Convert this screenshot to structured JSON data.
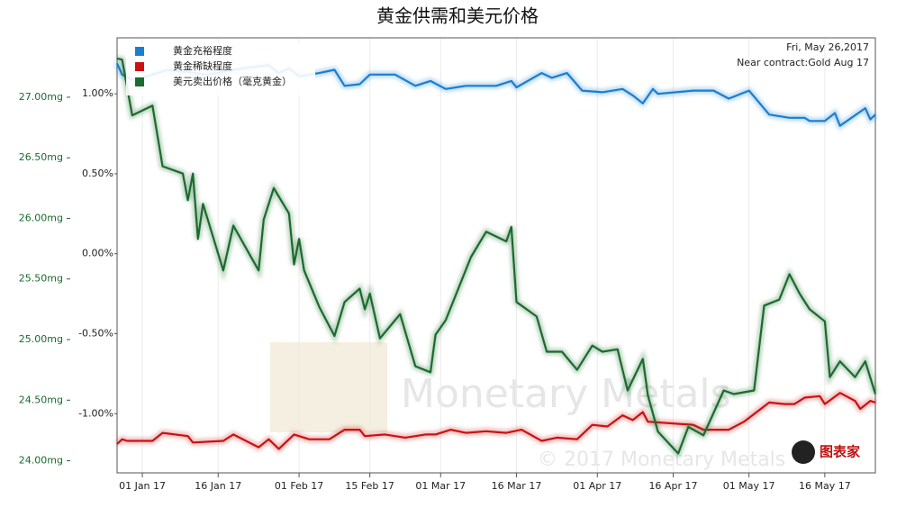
{
  "chart_data": {
    "type": "line",
    "title": "黄金供需和美元价格",
    "annotations": [
      "Fri, May 26,2017",
      "Near contract:Gold Aug 17",
      "Monetary Metals",
      "© 2017 Monetary Metals",
      "图表家"
    ],
    "xlim": [
      "2016-12-27",
      "2017-05-26"
    ],
    "xticks": [
      {
        "value": "2017-01-01",
        "label": "01 Jan 17"
      },
      {
        "value": "2017-01-16",
        "label": "16 Jan 17"
      },
      {
        "value": "2017-02-01",
        "label": "01 Feb 17"
      },
      {
        "value": "2017-02-15",
        "label": "15 Feb 17"
      },
      {
        "value": "2017-03-01",
        "label": "01 Mar 17"
      },
      {
        "value": "2017-03-16",
        "label": "16 Mar 17"
      },
      {
        "value": "2017-04-01",
        "label": "01 Apr 17"
      },
      {
        "value": "2017-04-16",
        "label": "16 Apr 17"
      },
      {
        "value": "2017-05-01",
        "label": "01 May 17"
      },
      {
        "value": "2017-05-16",
        "label": "16 May 17"
      }
    ],
    "ylim": [
      23.9,
      27.49
    ],
    "yticks": [
      {
        "value": 24,
        "label": "24.00mg"
      },
      {
        "value": 24.5,
        "label": "24.50mg"
      },
      {
        "value": 25,
        "label": "25.00mg"
      },
      {
        "value": 25.5,
        "label": "25.50mg"
      },
      {
        "value": 26,
        "label": "26.00mg"
      },
      {
        "value": 26.5,
        "label": "26.50mg"
      },
      {
        "value": 27,
        "label": "27.00mg"
      }
    ],
    "y2lim": [
      -1.37,
      1.35
    ],
    "y2ticks": [
      {
        "value": -1,
        "label": "-1.00%"
      },
      {
        "value": -0.5,
        "label": "-0.50%"
      },
      {
        "value": 0,
        "label": "0.00%"
      },
      {
        "value": 0.5,
        "label": "0.50%"
      },
      {
        "value": 1,
        "label": "1.00%"
      }
    ],
    "grid": "x",
    "legend": "upper left",
    "series": [
      {
        "name": "黄金充裕程度",
        "color": "#1a7fd0",
        "axis": "y2",
        "x": [
          "2016-12-27",
          "2016-12-28",
          "2016-12-30",
          "2017-01-02",
          "2017-01-06",
          "2017-01-14",
          "2017-01-19",
          "2017-01-26",
          "2017-01-28",
          "2017-01-30",
          "2017-02-01",
          "2017-02-05",
          "2017-02-08",
          "2017-02-10",
          "2017-02-13",
          "2017-02-15",
          "2017-02-20",
          "2017-02-24",
          "2017-02-27",
          "2017-03-02",
          "2017-03-06",
          "2017-03-12",
          "2017-03-15",
          "2017-03-16",
          "2017-03-21",
          "2017-03-23",
          "2017-03-26",
          "2017-03-29",
          "2017-04-02",
          "2017-04-06",
          "2017-04-08",
          "2017-04-10",
          "2017-04-12",
          "2017-04-13",
          "2017-04-20",
          "2017-04-24",
          "2017-04-27",
          "2017-05-01",
          "2017-05-05",
          "2017-05-09",
          "2017-05-12",
          "2017-05-13",
          "2017-05-16",
          "2017-05-18",
          "2017-05-19",
          "2017-05-24",
          "2017-05-25",
          "2017-05-26"
        ],
        "values": [
          1.19,
          1.12,
          1.09,
          1.11,
          1.15,
          1.12,
          1.15,
          1.18,
          1.13,
          1.16,
          1.11,
          1.13,
          1.15,
          1.05,
          1.06,
          1.12,
          1.12,
          1.05,
          1.08,
          1.03,
          1.05,
          1.05,
          1.08,
          1.04,
          1.13,
          1.1,
          1.13,
          1.02,
          1.01,
          1.03,
          0.99,
          0.94,
          1.03,
          1.0,
          1.02,
          1.02,
          0.97,
          1.02,
          0.87,
          0.85,
          0.85,
          0.83,
          0.83,
          0.88,
          0.8,
          0.91,
          0.84,
          0.87
        ]
      },
      {
        "name": "黄金稀缺程度",
        "color": "#cc1111",
        "axis": "y2",
        "x": [
          "2016-12-27",
          "2016-12-28",
          "2016-12-29",
          "2017-01-03",
          "2017-01-05",
          "2017-01-10",
          "2017-01-11",
          "2017-01-17",
          "2017-01-19",
          "2017-01-24",
          "2017-01-26",
          "2017-01-28",
          "2017-01-31",
          "2017-02-03",
          "2017-02-07",
          "2017-02-10",
          "2017-02-13",
          "2017-02-14",
          "2017-02-18",
          "2017-02-22",
          "2017-02-26",
          "2017-02-28",
          "2017-03-03",
          "2017-03-06",
          "2017-03-10",
          "2017-03-14",
          "2017-03-17",
          "2017-03-21",
          "2017-03-24",
          "2017-03-28",
          "2017-03-31",
          "2017-04-03",
          "2017-04-06",
          "2017-04-08",
          "2017-04-10",
          "2017-04-11",
          "2017-04-20",
          "2017-04-22",
          "2017-04-27",
          "2017-04-30",
          "2017-05-05",
          "2017-05-08",
          "2017-05-10",
          "2017-05-12",
          "2017-05-15",
          "2017-05-16",
          "2017-05-19",
          "2017-05-22",
          "2017-05-23",
          "2017-05-25",
          "2017-05-26"
        ],
        "values": [
          -1.19,
          -1.16,
          -1.17,
          -1.17,
          -1.12,
          -1.14,
          -1.18,
          -1.17,
          -1.13,
          -1.21,
          -1.16,
          -1.22,
          -1.13,
          -1.16,
          -1.16,
          -1.1,
          -1.1,
          -1.14,
          -1.13,
          -1.15,
          -1.13,
          -1.13,
          -1.1,
          -1.12,
          -1.11,
          -1.12,
          -1.1,
          -1.17,
          -1.15,
          -1.16,
          -1.07,
          -1.08,
          -1.01,
          -1.04,
          -0.99,
          -1.05,
          -1.07,
          -1.1,
          -1.1,
          -1.05,
          -0.93,
          -0.94,
          -0.94,
          -0.9,
          -0.89,
          -0.94,
          -0.87,
          -0.92,
          -0.97,
          -0.92,
          -0.93
        ]
      },
      {
        "name": "美元卖出价格（毫克黄金）",
        "color": "#1a6b2e",
        "axis": "y",
        "x": [
          "2016-12-27",
          "2016-12-28",
          "2016-12-30",
          "2017-01-03",
          "2017-01-05",
          "2017-01-09",
          "2017-01-10",
          "2017-01-11",
          "2017-01-12",
          "2017-01-13",
          "2017-01-17",
          "2017-01-19",
          "2017-01-24",
          "2017-01-25",
          "2017-01-27",
          "2017-01-30",
          "2017-01-31",
          "2017-02-01",
          "2017-02-02",
          "2017-02-05",
          "2017-02-08",
          "2017-02-10",
          "2017-02-13",
          "2017-02-14",
          "2017-02-15",
          "2017-02-17",
          "2017-02-20",
          "2017-02-21",
          "2017-02-24",
          "2017-02-27",
          "2017-02-28",
          "2017-03-02",
          "2017-03-07",
          "2017-03-10",
          "2017-03-14",
          "2017-03-15",
          "2017-03-16",
          "2017-03-20",
          "2017-03-22",
          "2017-03-25",
          "2017-03-28",
          "2017-03-31",
          "2017-04-02",
          "2017-04-05",
          "2017-04-07",
          "2017-04-10",
          "2017-04-11",
          "2017-04-13",
          "2017-04-17",
          "2017-04-19",
          "2017-04-22",
          "2017-04-26",
          "2017-04-28",
          "2017-05-02",
          "2017-05-04",
          "2017-05-07",
          "2017-05-09",
          "2017-05-11",
          "2017-05-13",
          "2017-05-16",
          "2017-05-17",
          "2017-05-19",
          "2017-05-22",
          "2017-05-24",
          "2017-05-26"
        ],
        "values": [
          27.32,
          27.31,
          26.85,
          26.93,
          26.43,
          26.37,
          26.15,
          26.37,
          25.83,
          26.12,
          25.57,
          25.94,
          25.57,
          25.99,
          26.25,
          26.04,
          25.62,
          25.83,
          25.57,
          25.27,
          25.03,
          25.31,
          25.42,
          25.25,
          25.38,
          25.01,
          25.16,
          25.21,
          24.78,
          24.73,
          25.04,
          25.16,
          25.68,
          25.89,
          25.81,
          25.93,
          25.31,
          25.19,
          24.9,
          24.9,
          24.75,
          24.95,
          24.9,
          24.92,
          24.58,
          24.84,
          24.54,
          24.24,
          24.06,
          24.28,
          24.21,
          24.58,
          24.55,
          24.58,
          25.28,
          25.33,
          25.54,
          25.38,
          25.25,
          25.15,
          24.69,
          24.82,
          24.69,
          24.82,
          24.55
        ]
      }
    ]
  }
}
